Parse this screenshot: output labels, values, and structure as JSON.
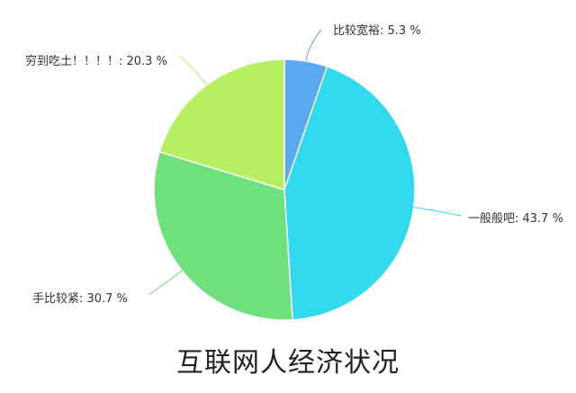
{
  "chart_data": {
    "type": "pie",
    "title": "互联网人经济状况",
    "start_angle_deg": 0,
    "direction": "clockwise",
    "slices": [
      {
        "label": "比较宽裕",
        "value": 5.3,
        "display": "比较宽裕: 5.3 %",
        "color": "#5aa9ee"
      },
      {
        "label": "一般般吧",
        "value": 43.7,
        "display": "一般般吧: 43.7 %",
        "color": "#30d9ee"
      },
      {
        "label": "手比较紧",
        "value": 30.7,
        "display": "手比较紧: 30.7 %",
        "color": "#6ee07c"
      },
      {
        "label": "穷到吃土！！！！",
        "value": 20.3,
        "display": "穷到吃土！！！！: 20.3 %",
        "color": "#b6f061"
      }
    ]
  }
}
